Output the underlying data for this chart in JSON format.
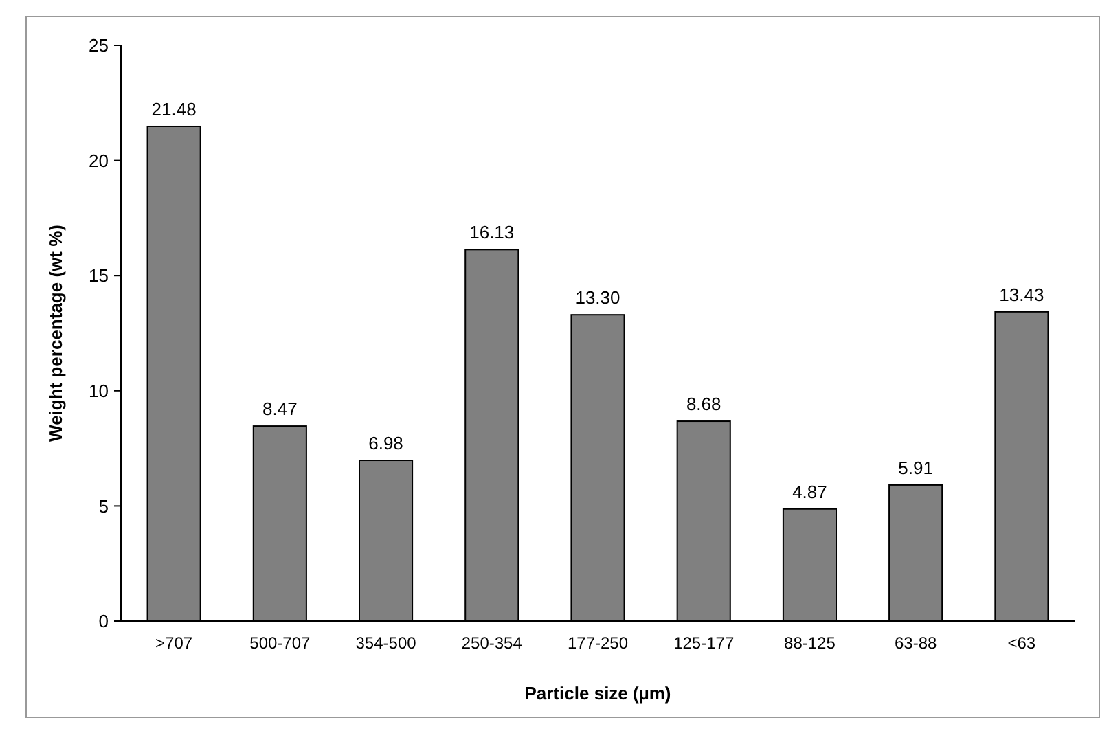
{
  "chart_data": {
    "type": "bar",
    "xlabel": "Particle size (µm)",
    "ylabel": "Weight percentage (wt %)",
    "categories": [
      ">707",
      "500-707",
      "354-500",
      "250-354",
      "177-250",
      "125-177",
      "88-125",
      "63-88",
      "<63"
    ],
    "values": [
      21.48,
      8.47,
      6.98,
      16.13,
      13.3,
      8.68,
      4.87,
      5.91,
      13.43
    ],
    "value_labels": [
      "21.48",
      "8.47",
      "6.98",
      "16.13",
      "13.30",
      "8.68",
      "4.87",
      "5.91",
      "13.43"
    ],
    "color": "#808080",
    "ylim": [
      0,
      25
    ],
    "yticks": [
      0,
      5,
      10,
      15,
      20,
      25
    ],
    "grid": false
  }
}
